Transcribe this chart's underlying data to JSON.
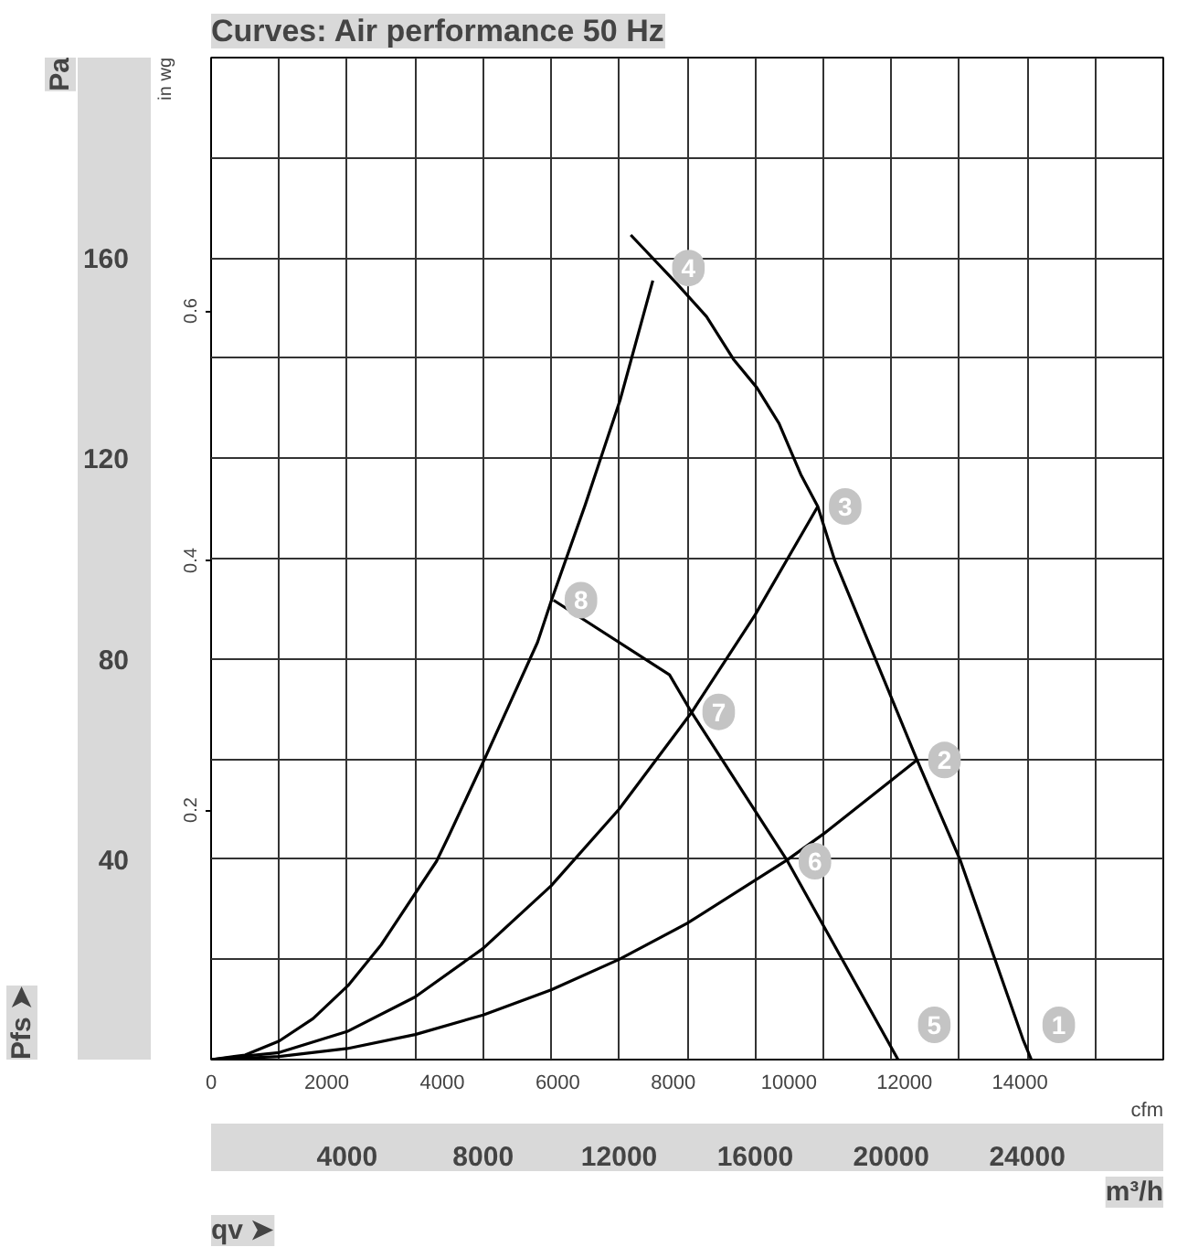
{
  "chart_data": {
    "type": "line",
    "title": "Curves: Air performance 50 Hz",
    "xlabel": "m³/h",
    "ylabel": "Pa",
    "y2label": "in wg",
    "x2label": "cfm",
    "xlim": [
      0,
      28000
    ],
    "ylim": [
      0,
      200
    ],
    "y2lim": [
      0,
      0.803
    ],
    "x2lim": [
      0,
      16480
    ],
    "xticks": [
      {
        "value": 0,
        "label": null
      },
      {
        "value": 2000,
        "label": null
      },
      4000,
      {
        "value": 6000,
        "label": null
      },
      8000,
      {
        "value": 10000,
        "label": null
      },
      12000,
      {
        "value": 14000,
        "label": null
      },
      16000,
      {
        "value": 18000,
        "label": null
      },
      20000,
      {
        "value": 22000,
        "label": null
      },
      24000,
      {
        "value": 26000,
        "label": null
      },
      {
        "value": 28000,
        "label": null
      }
    ],
    "yticks": [
      {
        "value": 0,
        "label": null
      },
      {
        "value": 20,
        "label": null
      },
      40,
      {
        "value": 60,
        "label": null
      },
      80,
      {
        "value": 100,
        "label": null
      },
      120,
      {
        "value": 140,
        "label": null
      },
      160,
      {
        "value": 180,
        "label": null
      },
      {
        "value": 200,
        "label": null
      }
    ],
    "y2ticks": [
      0.2,
      0.4,
      0.6
    ],
    "x2ticks": [
      0,
      2000,
      4000,
      6000,
      8000,
      10000,
      12000,
      14000
    ],
    "grid": true,
    "series": [
      {
        "color": "#000000",
        "x": [
          12340,
          13680,
          14570,
          15360,
          16050,
          16700,
          17340,
          17840,
          18330,
          20760,
          22040,
          23870,
          24120
        ],
        "values": [
          164.6,
          155.0,
          148.3,
          139.8,
          134.1,
          127.0,
          116.8,
          110.4,
          99.8,
          59.8,
          39.6,
          4.1,
          0
        ]
      },
      {
        "color": "#000000",
        "x": [
          10070,
          13480,
          14120,
          16950,
          20200
        ],
        "values": [
          91.7,
          76.8,
          69.4,
          39.6,
          0
        ]
      },
      {
        "color": "#000000",
        "x": [
          0,
          1000,
          2000,
          3000,
          4030,
          5000,
          6630,
          7000,
          8030,
          9600,
          10010,
          11000,
          12030,
          12990
        ],
        "values": [
          0,
          0.9,
          3.7,
          8.2,
          14.8,
          22.9,
          39.6,
          44.8,
          59.8,
          83.3,
          91.7,
          110.7,
          131.7,
          155.5
        ]
      },
      {
        "color": "#000000",
        "x": [
          0,
          2000,
          4000,
          6000,
          8000,
          10000,
          12000,
          14120,
          16000,
          17840
        ],
        "values": [
          0,
          1.4,
          5.6,
          12.5,
          22.2,
          34.7,
          50.0,
          69.2,
          88.8,
          110.4
        ]
      },
      {
        "color": "#000000",
        "x": [
          0,
          2000,
          4000,
          6000,
          8000,
          10000,
          12000,
          14000,
          16950,
          18000,
          20760
        ],
        "values": [
          0,
          0.6,
          2.2,
          5.0,
          8.9,
          13.9,
          20.0,
          27.2,
          39.9,
          45.0,
          59.8
        ]
      }
    ],
    "annotations": [
      {
        "text": "1",
        "x": 24120,
        "y": 0
      },
      {
        "text": "2",
        "x": 20760,
        "y": 59.8
      },
      {
        "text": "3",
        "x": 17840,
        "y": 110.4
      },
      {
        "text": "4",
        "x": 13230,
        "y": 158
      },
      {
        "text": "5",
        "x": 20460,
        "y": 0
      },
      {
        "text": "6",
        "x": 16950,
        "y": 39.6
      },
      {
        "text": "7",
        "x": 14120,
        "y": 69.4
      },
      {
        "text": "8",
        "x": 10070,
        "y": 91.7
      },
      "Pfs ➤",
      "qv ➤"
    ]
  }
}
